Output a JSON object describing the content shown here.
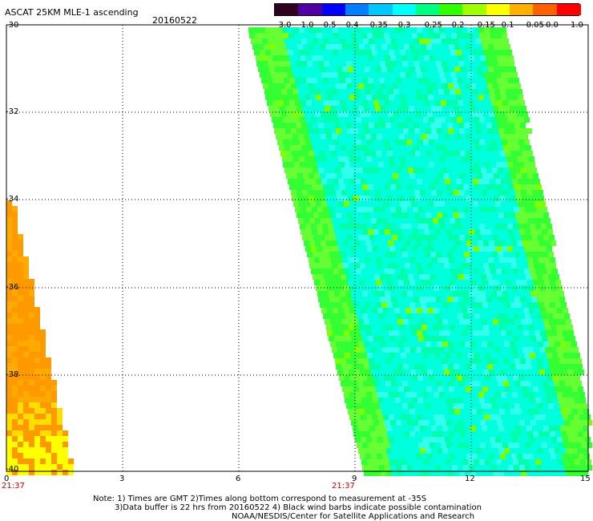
{
  "title": "ASCAT 25KM MLE-1 ascending",
  "date": "20160522",
  "colorbar": {
    "tick_labels": [
      "-3.0",
      "-1.0",
      "-0.5",
      "-0.4",
      "-0.35",
      "-0.3",
      "-0.25",
      "-0.2",
      "-0.15",
      "-0.1",
      "-0.05",
      "0.0",
      "1.0"
    ],
    "colors": [
      "#300020",
      "#5000a0",
      "#0000ff",
      "#0080ff",
      "#00c8ff",
      "#00ffff",
      "#00ff80",
      "#30ff00",
      "#a0ff00",
      "#ffff00",
      "#ffb000",
      "#ff6000",
      "#ff0000"
    ]
  },
  "axes": {
    "y_ticks": [
      "-30",
      "-32",
      "-34",
      "-36",
      "-38",
      "-40"
    ],
    "x_ticks": [
      "0",
      "3",
      "6",
      "9",
      "12",
      "15"
    ],
    "time_labels": [
      "21:37",
      "21:37"
    ]
  },
  "notes": [
    "Note: 1) Times are GMT 2)Times along bottom correspond to measurement at -35S",
    "3)Data buffer is 22 hrs from 20160522 4) Black wind barbs indicate possible contamination",
    "NOAA/NESDIS/Center for Satellite Applications and Research"
  ]
}
